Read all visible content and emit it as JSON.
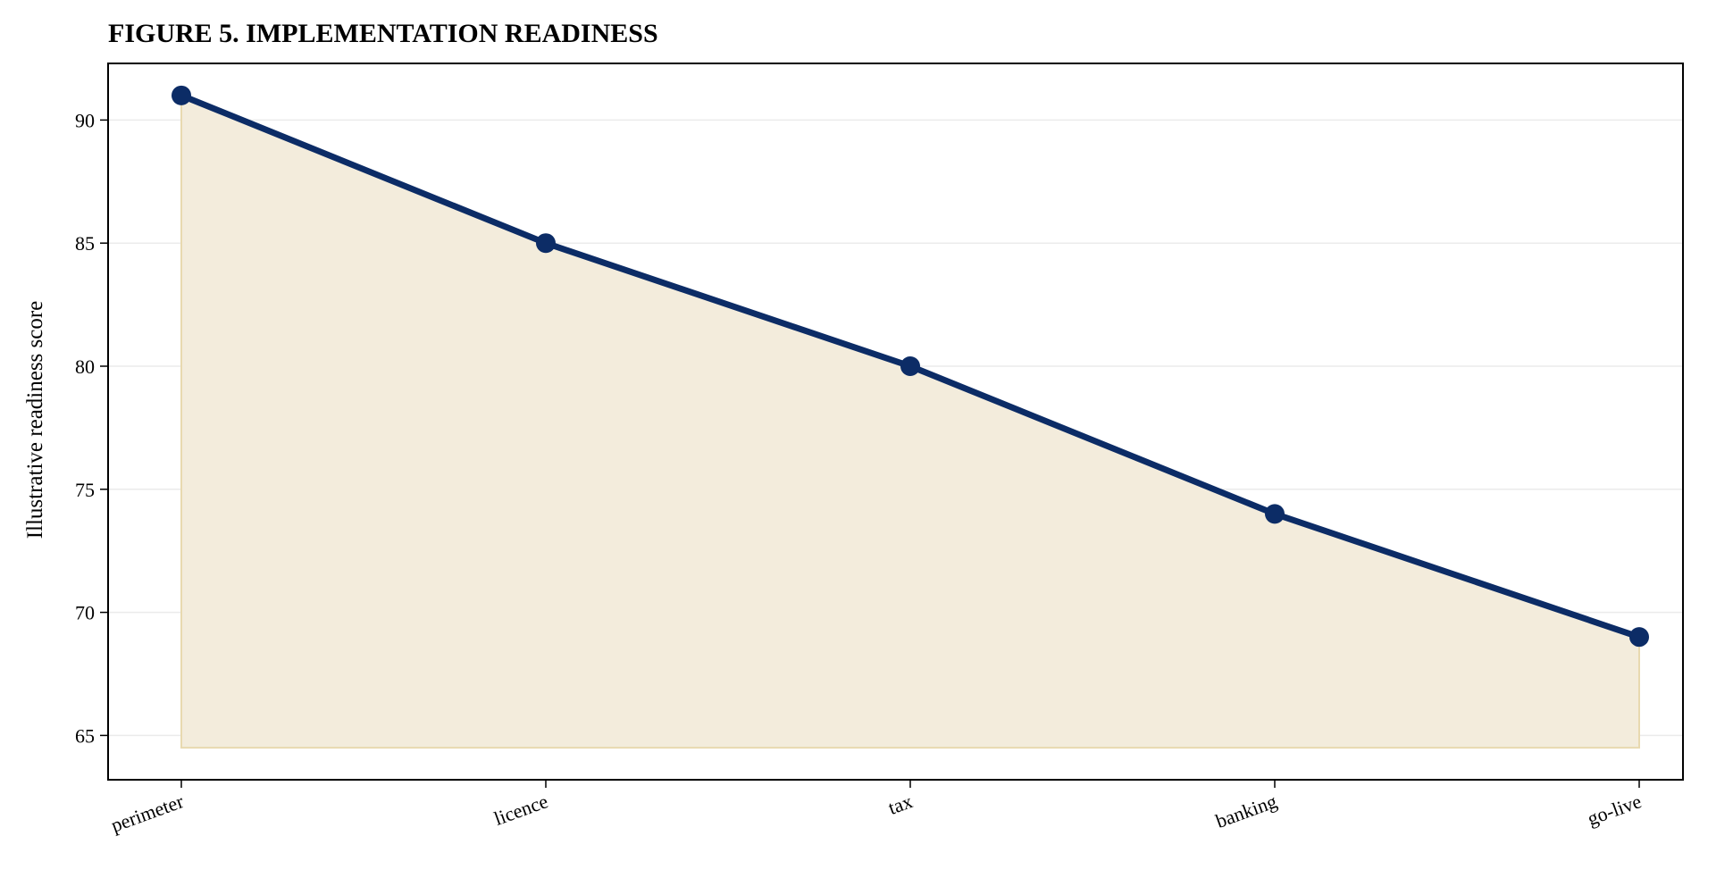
{
  "chart_data": {
    "type": "area",
    "title": "FIGURE 5. IMPLEMENTATION READINESS",
    "xlabel": "",
    "ylabel": "Illustrative readiness score",
    "categories": [
      "perimeter",
      "licence",
      "tax",
      "banking",
      "go-live"
    ],
    "series": [
      {
        "values": [
          91,
          85,
          80,
          74,
          69
        ]
      }
    ],
    "ylim": [
      63.2,
      92.3
    ],
    "yticks": [
      65,
      70,
      75,
      80,
      85,
      90
    ],
    "area_baseline": 64.5,
    "grid": "horizontal",
    "legend": "none",
    "colors": {
      "line": "#0c2c66",
      "fill": "#f3ecdc",
      "fill_edge": "#e8d9b0",
      "grid": "#ebebeb"
    }
  }
}
